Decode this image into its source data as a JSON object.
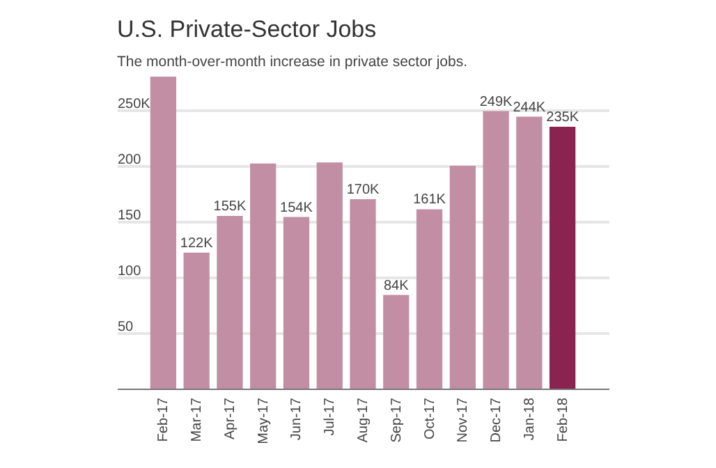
{
  "chart_data": {
    "type": "bar",
    "title": "U.S. Private-Sector Jobs",
    "subtitle": "The month-over-month increase in private sector jobs.",
    "categories": [
      "Feb-17",
      "Mar-17",
      "Apr-17",
      "May-17",
      "Jun-17",
      "Jul-17",
      "Aug-17",
      "Sep-17",
      "Oct-17",
      "Nov-17",
      "Dec-17",
      "Jan-18",
      "Feb-18"
    ],
    "values": [
      280,
      122,
      155,
      202,
      154,
      203,
      170,
      84,
      161,
      200,
      249,
      244,
      235
    ],
    "value_labels": [
      null,
      "122K",
      "155K",
      null,
      "154K",
      null,
      "170K",
      "84K",
      "161K",
      null,
      "249K",
      "244K",
      "235K"
    ],
    "colors": [
      "#c28ea3",
      "#c28ea3",
      "#c28ea3",
      "#c28ea3",
      "#c28ea3",
      "#c28ea3",
      "#c28ea3",
      "#c28ea3",
      "#c28ea3",
      "#c28ea3",
      "#c28ea3",
      "#c28ea3",
      "#8a2350"
    ],
    "ylim": [
      0,
      280
    ],
    "yticks": [
      50,
      100,
      150,
      200,
      {
        "value": 250,
        "label": "250K"
      }
    ],
    "grid": "y"
  }
}
